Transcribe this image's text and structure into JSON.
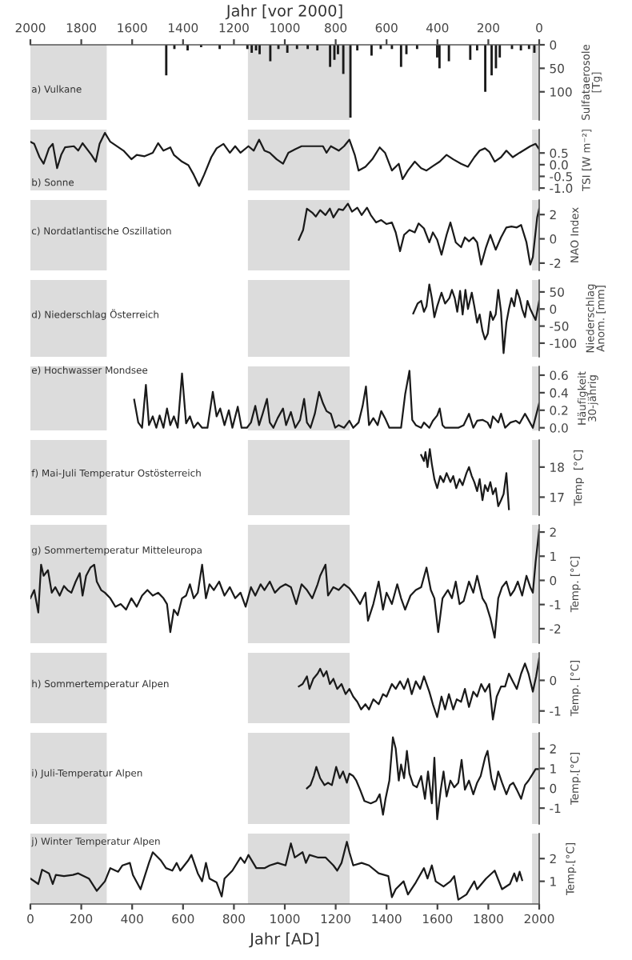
{
  "chart_data": [
    {
      "type": "bar",
      "title": "a) Vulkane",
      "ylabel": "Sulfataerosole\n[Tg]",
      "xlabel": "Jahr [vor 2000]",
      "xlim": [
        2000,
        0
      ],
      "xticks": [
        2000,
        1800,
        1600,
        1400,
        1200,
        1000,
        800,
        600,
        400,
        200,
        0
      ],
      "ylim": [
        160,
        0
      ],
      "yticks": [
        0,
        50,
        100
      ],
      "bands": [
        {
          "axis": "x",
          "from": 2000,
          "to": 1700,
          "color": "#dcdcdc"
        },
        {
          "axis": "x",
          "from": 1145,
          "to": 745,
          "color": "#dcdcdc"
        },
        {
          "axis": "x",
          "from": 28,
          "to": 0,
          "color": "#dcdcdc"
        }
      ],
      "x": [
        1466,
        1434,
        1382,
        1329,
        1256,
        1147,
        1130,
        1113,
        1099,
        1057,
        1025,
        990,
        952,
        910,
        872,
        822,
        805,
        791,
        770,
        742,
        715,
        659,
        623,
        579,
        543,
        522,
        480,
        401,
        392,
        355,
        271,
        244,
        212,
        187,
        170,
        155,
        107,
        72,
        40,
        19
      ],
      "series": [
        {
          "color": "#1a1a1a",
          "values": [
            65,
            9,
            12,
            5,
            9,
            9,
            17,
            12,
            20,
            35,
            9,
            17,
            9,
            9,
            12,
            47,
            32,
            20,
            62,
            155,
            12,
            23,
            9,
            9,
            47,
            20,
            9,
            27,
            50,
            35,
            32,
            12,
            100,
            65,
            50,
            27,
            9,
            12,
            9,
            17
          ]
        }
      ]
    },
    {
      "type": "line",
      "title": "b) Sonne",
      "ylabel": "TSI [W m⁻²]",
      "tick_labels": "y",
      "xlim": [
        0,
        2000
      ],
      "ylim": [
        -1.1,
        1.5
      ],
      "yticks": [
        {
          "value": -1.0,
          "label": "-1.0"
        },
        {
          "value": -0.5,
          "label": "-0.5"
        },
        {
          "value": 0.0,
          "label": "0.0"
        },
        {
          "value": 0.5,
          "label": "0.5"
        }
      ],
      "bands": [
        {
          "axis": "x",
          "from": 0,
          "to": 300,
          "color": "#dcdcdc"
        },
        {
          "axis": "x",
          "from": 855,
          "to": 1255,
          "color": "#dcdcdc"
        },
        {
          "axis": "x",
          "from": 1972,
          "to": 2000,
          "color": "#dcdcdc"
        }
      ],
      "x": [
        0,
        15,
        36,
        52,
        73,
        88,
        105,
        121,
        136,
        171,
        188,
        205,
        240,
        257,
        272,
        293,
        314,
        366,
        397,
        418,
        449,
        481,
        502,
        523,
        550,
        564,
        596,
        621,
        642,
        663,
        683,
        711,
        732,
        759,
        784,
        805,
        826,
        857,
        878,
        899,
        920,
        941,
        968,
        993,
        1014,
        1041,
        1066,
        1118,
        1150,
        1164,
        1181,
        1212,
        1233,
        1254,
        1275,
        1290,
        1317,
        1344,
        1373,
        1394,
        1421,
        1448,
        1463,
        1484,
        1511,
        1536,
        1557,
        1582,
        1609,
        1636,
        1662,
        1693,
        1720,
        1745,
        1766,
        1787,
        1804,
        1825,
        1850,
        1871,
        1896,
        1923,
        1965,
        1986,
        2000
      ],
      "series": [
        {
          "color": "#1a1a1a",
          "values": [
            0.98,
            0.89,
            0.32,
            0.04,
            0.7,
            0.89,
            -0.15,
            0.42,
            0.74,
            0.79,
            0.6,
            0.92,
            0.42,
            0.13,
            0.89,
            1.36,
            0.98,
            0.6,
            0.23,
            0.42,
            0.36,
            0.51,
            0.92,
            0.6,
            0.74,
            0.42,
            0.13,
            -0.02,
            -0.43,
            -0.91,
            -0.43,
            0.32,
            0.7,
            0.89,
            0.51,
            0.79,
            0.51,
            0.79,
            0.6,
            1.07,
            0.6,
            0.51,
            0.23,
            0.04,
            0.51,
            0.66,
            0.79,
            0.79,
            0.79,
            0.51,
            0.79,
            0.6,
            0.79,
            1.07,
            0.42,
            -0.25,
            -0.09,
            0.23,
            0.74,
            0.51,
            -0.25,
            0.04,
            -0.62,
            -0.25,
            0.13,
            -0.15,
            -0.25,
            -0.06,
            0.13,
            0.42,
            0.23,
            0.04,
            -0.09,
            0.32,
            0.6,
            0.7,
            0.55,
            0.13,
            0.32,
            0.6,
            0.32,
            0.51,
            0.79,
            0.89,
            0.66
          ]
        }
      ]
    },
    {
      "type": "line",
      "title": "c) Nordatlantische Oszillation",
      "ylabel": "NAO Index",
      "tick_labels": "y",
      "xlim": [
        0,
        2000
      ],
      "ylim": [
        -2.6,
        3.2
      ],
      "yticks": [
        -2,
        0,
        2
      ],
      "bands": [
        {
          "axis": "x",
          "from": 0,
          "to": 300,
          "color": "#dcdcdc"
        },
        {
          "axis": "x",
          "from": 855,
          "to": 1255,
          "color": "#dcdcdc"
        },
        {
          "axis": "x",
          "from": 1972,
          "to": 2000,
          "color": "#dcdcdc"
        }
      ],
      "x": [
        1055,
        1072,
        1087,
        1108,
        1122,
        1139,
        1160,
        1177,
        1191,
        1212,
        1229,
        1248,
        1264,
        1285,
        1302,
        1323,
        1338,
        1359,
        1379,
        1400,
        1421,
        1436,
        1453,
        1469,
        1490,
        1511,
        1526,
        1547,
        1568,
        1582,
        1599,
        1616,
        1636,
        1651,
        1672,
        1693,
        1708,
        1724,
        1741,
        1756,
        1772,
        1791,
        1808,
        1829,
        1850,
        1871,
        1891,
        1912,
        1929,
        1950,
        1965,
        1975,
        1992,
        2000
      ],
      "series": [
        {
          "color": "#1a1a1a",
          "values": [
            -0.08,
            0.73,
            2.49,
            2.16,
            1.84,
            2.37,
            1.96,
            2.49,
            1.76,
            2.45,
            2.37,
            2.9,
            2.24,
            2.57,
            1.96,
            2.57,
            1.96,
            1.35,
            1.55,
            1.22,
            1.35,
            0.53,
            -1.02,
            0.33,
            0.73,
            0.53,
            1.27,
            0.86,
            -0.29,
            0.53,
            -0.08,
            -1.31,
            0.33,
            1.35,
            -0.29,
            -0.69,
            0.12,
            -0.2,
            0.12,
            -0.29,
            -2.12,
            -0.69,
            0.33,
            -0.9,
            0.12,
            0.94,
            1.02,
            0.94,
            1.14,
            -0.29,
            -2.12,
            -1.51,
            1.76,
            2.49
          ]
        }
      ]
    },
    {
      "type": "line",
      "title": "d) Niederschlag Österreich",
      "ylabel": "Niederschlag\nAnom. [mm]",
      "tick_labels": "y",
      "xlim": [
        0,
        2000
      ],
      "ylim": [
        -140,
        85
      ],
      "yticks": [
        -100,
        -50,
        0,
        50
      ],
      "bands": [
        {
          "axis": "x",
          "from": 0,
          "to": 300,
          "color": "#dcdcdc"
        },
        {
          "axis": "x",
          "from": 855,
          "to": 1255,
          "color": "#dcdcdc"
        },
        {
          "axis": "x",
          "from": 1972,
          "to": 2000,
          "color": "#dcdcdc"
        }
      ],
      "x": [
        1505,
        1522,
        1536,
        1547,
        1557,
        1568,
        1578,
        1588,
        1599,
        1616,
        1630,
        1647,
        1657,
        1668,
        1678,
        1689,
        1699,
        1710,
        1720,
        1735,
        1745,
        1756,
        1766,
        1777,
        1787,
        1798,
        1808,
        1818,
        1829,
        1839,
        1850,
        1860,
        1871,
        1881,
        1891,
        1902,
        1912,
        1923,
        1933,
        1944,
        1954,
        1965,
        1975,
        1986,
        2000
      ],
      "series": [
        {
          "color": "#1a1a1a",
          "values": [
            -13,
            16,
            24,
            -8,
            8,
            72,
            32,
            -24,
            8,
            48,
            16,
            32,
            56,
            32,
            -8,
            53,
            -16,
            56,
            0,
            48,
            8,
            -40,
            -16,
            -64,
            -89,
            -72,
            -8,
            -32,
            -16,
            56,
            -8,
            -129,
            -40,
            0,
            32,
            8,
            56,
            32,
            0,
            -24,
            24,
            0,
            -16,
            -32,
            24
          ]
        }
      ]
    },
    {
      "type": "line",
      "title": "e) Hochwasser Mondsee",
      "ylabel": "Häufigkeit\n30-jährig",
      "tick_labels": "y",
      "xlim": [
        0,
        2000
      ],
      "ylim": [
        -0.03,
        0.7
      ],
      "yticks": [
        {
          "value": 0.0,
          "label": "0.0"
        },
        {
          "value": 0.2,
          "label": "0.2"
        },
        {
          "value": 0.4,
          "label": "0.4"
        },
        {
          "value": 0.6,
          "label": "0.6"
        }
      ],
      "bands": [
        {
          "axis": "x",
          "from": 0,
          "to": 300,
          "color": "#dcdcdc"
        },
        {
          "axis": "x",
          "from": 855,
          "to": 1255,
          "color": "#dcdcdc"
        },
        {
          "axis": "x",
          "from": 1972,
          "to": 2000,
          "color": "#dcdcdc"
        }
      ],
      "x": [
        408,
        424,
        439,
        454,
        466,
        481,
        495,
        508,
        523,
        537,
        550,
        564,
        579,
        596,
        612,
        627,
        642,
        658,
        675,
        696,
        717,
        732,
        746,
        763,
        780,
        794,
        815,
        830,
        851,
        867,
        884,
        899,
        913,
        930,
        941,
        955,
        972,
        993,
        1005,
        1024,
        1041,
        1060,
        1076,
        1087,
        1101,
        1118,
        1135,
        1150,
        1164,
        1181,
        1198,
        1212,
        1233,
        1254,
        1269,
        1290,
        1306,
        1319,
        1331,
        1348,
        1365,
        1379,
        1394,
        1411,
        1432,
        1457,
        1473,
        1490,
        1501,
        1515,
        1536,
        1547,
        1568,
        1582,
        1599,
        1609,
        1620,
        1630,
        1651,
        1682,
        1703,
        1724,
        1741,
        1756,
        1777,
        1797,
        1808,
        1818,
        1839,
        1850,
        1866,
        1887,
        1908,
        1923,
        1944,
        1954,
        1975,
        2000
      ],
      "series": [
        {
          "color": "#1a1a1a",
          "values": [
            0.32,
            0.06,
            0,
            0.49,
            0.03,
            0.13,
            0,
            0.14,
            0,
            0.22,
            0.03,
            0.13,
            0,
            0.62,
            0.05,
            0.13,
            0,
            0.06,
            0,
            0,
            0.41,
            0.13,
            0.22,
            0.03,
            0.2,
            0,
            0.24,
            0,
            0,
            0.06,
            0.25,
            0.03,
            0.16,
            0.33,
            0.06,
            0,
            0.11,
            0.22,
            0.03,
            0.18,
            0,
            0.09,
            0.33,
            0.06,
            0,
            0.16,
            0.41,
            0.28,
            0.19,
            0.16,
            0,
            0.03,
            0,
            0.08,
            0,
            0.06,
            0.25,
            0.47,
            0.03,
            0.11,
            0.03,
            0.19,
            0.11,
            0,
            0,
            0,
            0.38,
            0.65,
            0.09,
            0.03,
            0,
            0.06,
            0,
            0.08,
            0.14,
            0.22,
            0.03,
            0,
            0,
            0,
            0.03,
            0.16,
            0,
            0.08,
            0.09,
            0.06,
            0,
            0.13,
            0.06,
            0.16,
            0,
            0.06,
            0.08,
            0.05,
            0.16,
            0.11,
            0,
            0.28
          ]
        }
      ]
    },
    {
      "type": "line",
      "title": "f) Mai-Juli Temperatur Ostösterreich",
      "ylabel": "Temp  [°C]",
      "tick_labels": "y",
      "xlim": [
        0,
        2000
      ],
      "ylim": [
        16.4,
        18.9
      ],
      "yticks": [
        17,
        18
      ],
      "bands": [
        {
          "axis": "x",
          "from": 0,
          "to": 300,
          "color": "#dcdcdc"
        },
        {
          "axis": "x",
          "from": 855,
          "to": 1255,
          "color": "#dcdcdc"
        },
        {
          "axis": "x",
          "from": 1972,
          "to": 2000,
          "color": "#dcdcdc"
        }
      ],
      "x": [
        1536,
        1547,
        1553,
        1561,
        1570,
        1578,
        1588,
        1599,
        1611,
        1624,
        1636,
        1651,
        1662,
        1674,
        1687,
        1699,
        1714,
        1724,
        1735,
        1745,
        1756,
        1766,
        1777,
        1787,
        1798,
        1808,
        1818,
        1829,
        1839,
        1850,
        1860,
        1871,
        1881
      ],
      "series": [
        {
          "color": "#1a1a1a",
          "values": [
            18.4,
            18.2,
            18.5,
            18.0,
            18.6,
            18.1,
            17.6,
            17.3,
            17.7,
            17.5,
            17.8,
            17.5,
            17.7,
            17.3,
            17.6,
            17.4,
            17.8,
            18.0,
            17.7,
            17.5,
            17.2,
            17.6,
            16.9,
            17.4,
            17.2,
            17.5,
            17.1,
            17.3,
            16.7,
            16.9,
            17.1,
            17.8,
            16.6
          ]
        }
      ]
    },
    {
      "type": "line",
      "title": "g) Sommertemperatur Mitteleuropa",
      "ylabel": "Temp. [°C]",
      "tick_labels": "y",
      "xlim": [
        0,
        2000
      ],
      "ylim": [
        -2.6,
        2.3
      ],
      "yticks": [
        -2,
        -1,
        0,
        1,
        2
      ],
      "bands": [
        {
          "axis": "x",
          "from": 0,
          "to": 300,
          "color": "#dcdcdc"
        },
        {
          "axis": "x",
          "from": 855,
          "to": 1255,
          "color": "#dcdcdc"
        },
        {
          "axis": "x",
          "from": 1972,
          "to": 2000,
          "color": "#dcdcdc"
        }
      ],
      "x": [
        0,
        15,
        31,
        42,
        52,
        69,
        84,
        98,
        115,
        132,
        146,
        161,
        178,
        194,
        205,
        219,
        236,
        251,
        261,
        278,
        293,
        314,
        334,
        355,
        376,
        397,
        418,
        439,
        460,
        481,
        502,
        523,
        537,
        550,
        564,
        579,
        596,
        612,
        627,
        642,
        658,
        675,
        690,
        704,
        721,
        742,
        763,
        784,
        805,
        826,
        846,
        867,
        884,
        905,
        920,
        941,
        961,
        982,
        1003,
        1024,
        1045,
        1066,
        1087,
        1108,
        1129,
        1139,
        1160,
        1170,
        1191,
        1212,
        1233,
        1254,
        1275,
        1296,
        1317,
        1327,
        1348,
        1369,
        1386,
        1400,
        1421,
        1442,
        1457,
        1473,
        1494,
        1515,
        1536,
        1557,
        1574,
        1588,
        1603,
        1620,
        1641,
        1657,
        1672,
        1687,
        1703,
        1724,
        1741,
        1756,
        1777,
        1791,
        1808,
        1825,
        1839,
        1854,
        1871,
        1887,
        1902,
        1916,
        1933,
        1950,
        1965,
        1975,
        1986,
        2000
      ],
      "series": [
        {
          "color": "#1a1a1a",
          "values": [
            -0.74,
            -0.4,
            -1.33,
            0.65,
            0.19,
            0.42,
            -0.51,
            -0.28,
            -0.63,
            -0.23,
            -0.4,
            -0.51,
            -0.05,
            0.3,
            -0.63,
            0.19,
            0.53,
            0.65,
            -0.05,
            -0.4,
            -0.51,
            -0.74,
            -1.09,
            -0.98,
            -1.21,
            -0.74,
            -1.09,
            -0.63,
            -0.4,
            -0.63,
            -0.51,
            -0.74,
            -0.98,
            -2.14,
            -1.21,
            -1.44,
            -0.74,
            -0.63,
            -0.16,
            -0.74,
            -0.51,
            0.65,
            -0.74,
            -0.16,
            -0.4,
            -0.05,
            -0.63,
            -0.28,
            -0.74,
            -0.51,
            -1.09,
            -0.28,
            -0.63,
            -0.16,
            -0.4,
            -0.05,
            -0.51,
            -0.28,
            -0.16,
            -0.28,
            -0.98,
            -0.16,
            -0.4,
            -0.74,
            -0.16,
            0.19,
            0.65,
            -0.63,
            -0.28,
            -0.4,
            -0.16,
            -0.33,
            -0.63,
            -0.98,
            -0.51,
            -1.67,
            -0.98,
            -0.05,
            -1.21,
            -0.51,
            -0.98,
            -0.16,
            -0.74,
            -1.21,
            -0.63,
            -0.4,
            -0.28,
            0.53,
            -0.4,
            -0.74,
            -2.14,
            -0.74,
            -0.4,
            -0.74,
            -0.05,
            -0.98,
            -0.86,
            -0.05,
            -0.51,
            0.19,
            -0.74,
            -0.98,
            -1.56,
            -2.37,
            -0.74,
            -0.28,
            -0.05,
            -0.63,
            -0.4,
            -0.05,
            -0.63,
            0.19,
            -0.28,
            -0.51,
            0.77,
            2.1
          ]
        }
      ]
    },
    {
      "type": "line",
      "title": "h) Sommertemperatur Alpen",
      "ylabel": "Temp. [°C]",
      "tick_labels": "y",
      "xlim": [
        0,
        2000
      ],
      "ylim": [
        -1.4,
        0.9
      ],
      "yticks": [
        -1,
        0
      ],
      "bands": [
        {
          "axis": "x",
          "from": 0,
          "to": 300,
          "color": "#dcdcdc"
        },
        {
          "axis": "x",
          "from": 855,
          "to": 1255,
          "color": "#dcdcdc"
        },
        {
          "axis": "x",
          "from": 1972,
          "to": 2000,
          "color": "#dcdcdc"
        }
      ],
      "x": [
        1055,
        1070,
        1087,
        1097,
        1112,
        1129,
        1139,
        1152,
        1164,
        1177,
        1191,
        1206,
        1223,
        1239,
        1254,
        1269,
        1285,
        1300,
        1317,
        1331,
        1348,
        1369,
        1386,
        1400,
        1421,
        1436,
        1453,
        1469,
        1484,
        1499,
        1515,
        1532,
        1547,
        1568,
        1582,
        1599,
        1616,
        1630,
        1645,
        1662,
        1676,
        1693,
        1708,
        1724,
        1741,
        1756,
        1772,
        1787,
        1804,
        1818,
        1833,
        1850,
        1866,
        1881,
        1896,
        1912,
        1929,
        1944,
        1958,
        1975,
        1988,
        2000
      ],
      "series": [
        {
          "color": "#1a1a1a",
          "values": [
            -0.2,
            -0.12,
            0.13,
            -0.28,
            0.05,
            0.22,
            0.38,
            0.13,
            0.3,
            -0.12,
            0.05,
            -0.28,
            -0.12,
            -0.45,
            -0.28,
            -0.53,
            -0.7,
            -0.95,
            -0.78,
            -0.95,
            -0.62,
            -0.78,
            -0.45,
            -0.53,
            -0.12,
            -0.28,
            -0.03,
            -0.28,
            0.05,
            -0.45,
            -0.03,
            -0.28,
            0.13,
            -0.37,
            -0.78,
            -1.2,
            -0.53,
            -0.95,
            -0.45,
            -0.95,
            -0.62,
            -0.7,
            -0.28,
            -0.87,
            -0.37,
            -0.53,
            -0.12,
            -0.37,
            -0.12,
            -1.28,
            -0.53,
            -0.2,
            -0.2,
            0.22,
            -0.03,
            -0.28,
            0.22,
            0.55,
            0.22,
            -0.37,
            0.13,
            0.72
          ]
        }
      ]
    },
    {
      "type": "line",
      "title": "i) Juli-Temperatur Alpen",
      "ylabel": "Temp.[°C]",
      "tick_labels": "y",
      "xlim": [
        0,
        2000
      ],
      "ylim": [
        -1.8,
        2.8
      ],
      "yticks": [
        -1,
        0,
        1,
        2
      ],
      "bands": [
        {
          "axis": "x",
          "from": 0,
          "to": 300,
          "color": "#dcdcdc"
        },
        {
          "axis": "x",
          "from": 855,
          "to": 1255,
          "color": "#dcdcdc"
        },
        {
          "axis": "x",
          "from": 1972,
          "to": 2000,
          "color": "#dcdcdc"
        }
      ],
      "x": [
        1087,
        1101,
        1114,
        1124,
        1139,
        1156,
        1170,
        1185,
        1202,
        1216,
        1229,
        1244,
        1254,
        1269,
        1281,
        1296,
        1313,
        1338,
        1359,
        1373,
        1386,
        1396,
        1411,
        1425,
        1436,
        1448,
        1457,
        1469,
        1480,
        1490,
        1505,
        1519,
        1536,
        1551,
        1563,
        1578,
        1588,
        1599,
        1613,
        1624,
        1636,
        1651,
        1666,
        1682,
        1695,
        1708,
        1724,
        1741,
        1756,
        1770,
        1787,
        1797,
        1812,
        1825,
        1839,
        1854,
        1871,
        1885,
        1898,
        1912,
        1929,
        1944,
        1958,
        1975,
        1986,
        2000
      ],
      "series": [
        {
          "color": "#1a1a1a",
          "values": [
            0,
            0.16,
            0.62,
            1.08,
            0.51,
            0.16,
            0.28,
            0.16,
            1.08,
            0.51,
            0.85,
            0.28,
            0.74,
            0.62,
            0.39,
            -0.07,
            -0.64,
            -0.76,
            -0.64,
            -0.3,
            -1.33,
            -0.53,
            0.39,
            2.57,
            2.0,
            0.39,
            1.2,
            0.51,
            1.89,
            0.74,
            0.16,
            0.05,
            0.62,
            -0.53,
            0.85,
            -0.76,
            1.54,
            -1.56,
            -0.07,
            0.85,
            -0.41,
            0.39,
            0.05,
            0.28,
            1.43,
            -0.07,
            0.39,
            -0.3,
            0.28,
            0.62,
            1.54,
            1.89,
            0.51,
            -0.07,
            0.85,
            0.28,
            -0.3,
            0.16,
            0.28,
            -0.07,
            -0.53,
            0.16,
            0.39,
            0.74,
            0.97,
            0.97
          ]
        }
      ]
    },
    {
      "type": "line",
      "title": "j) Winter Temperatur Alpen",
      "ylabel": "Temp.[°C]",
      "xlabel": "Jahr [AD]",
      "xlim": [
        0,
        2000
      ],
      "xticks": [
        0,
        200,
        400,
        600,
        800,
        1000,
        1200,
        1400,
        1600,
        1800,
        2000
      ],
      "ylim": [
        0.0,
        3.1
      ],
      "yticks": [
        1,
        2
      ],
      "bands": [
        {
          "axis": "x",
          "from": 0,
          "to": 300,
          "color": "#dcdcdc"
        },
        {
          "axis": "x",
          "from": 855,
          "to": 1255,
          "color": "#dcdcdc"
        },
        {
          "axis": "x",
          "from": 1972,
          "to": 2000,
          "color": "#dcdcdc"
        }
      ],
      "x": [
        0,
        31,
        46,
        73,
        88,
        100,
        132,
        167,
        188,
        230,
        261,
        293,
        314,
        345,
        362,
        391,
        403,
        433,
        466,
        481,
        512,
        533,
        558,
        575,
        589,
        621,
        633,
        658,
        675,
        690,
        704,
        732,
        752,
        763,
        794,
        826,
        842,
        857,
        888,
        920,
        941,
        972,
        1003,
        1024,
        1039,
        1070,
        1083,
        1097,
        1129,
        1160,
        1191,
        1206,
        1223,
        1244,
        1254,
        1269,
        1302,
        1331,
        1369,
        1407,
        1421,
        1436,
        1467,
        1484,
        1515,
        1547,
        1561,
        1578,
        1593,
        1624,
        1651,
        1666,
        1682,
        1714,
        1745,
        1756,
        1791,
        1825,
        1854,
        1885,
        1902,
        1912,
        1923,
        1933
      ],
      "series": [
        {
          "color": "#1a1a1a",
          "values": [
            1.12,
            0.88,
            1.51,
            1.35,
            0.88,
            1.28,
            1.23,
            1.28,
            1.35,
            1.12,
            0.58,
            1.0,
            1.58,
            1.42,
            1.7,
            1.81,
            1.28,
            0.65,
            1.81,
            2.28,
            1.93,
            1.58,
            1.47,
            1.81,
            1.47,
            1.93,
            2.16,
            1.35,
            1.0,
            1.81,
            1.12,
            0.95,
            0.33,
            1.12,
            1.47,
            2.05,
            1.81,
            2.16,
            1.58,
            1.58,
            1.7,
            1.81,
            1.7,
            2.67,
            2.05,
            2.28,
            1.81,
            2.16,
            2.05,
            2.05,
            1.7,
            1.47,
            1.81,
            2.74,
            2.28,
            1.7,
            1.81,
            1.7,
            1.35,
            1.23,
            0.3,
            0.65,
            1.0,
            0.42,
            0.95,
            1.58,
            1.12,
            1.7,
            1.0,
            0.77,
            1.0,
            1.23,
            0.19,
            0.42,
            1.0,
            0.65,
            1.12,
            1.47,
            0.65,
            0.88,
            1.35,
            1.0,
            1.42,
            1.05
          ]
        }
      ]
    }
  ]
}
